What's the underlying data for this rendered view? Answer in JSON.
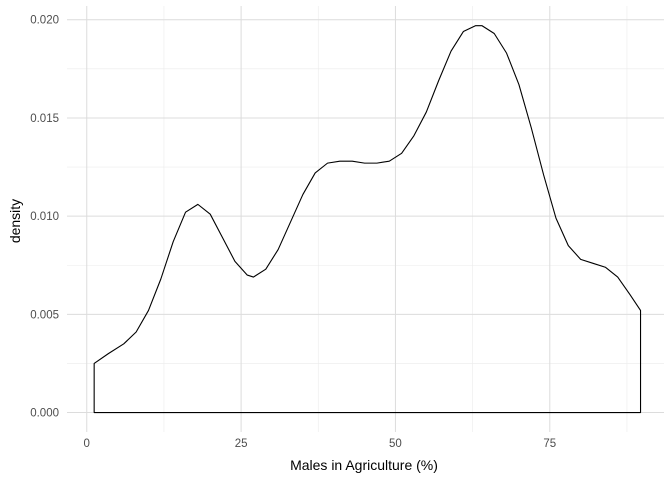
{
  "chart_data": {
    "type": "area",
    "title": "",
    "xlabel": "Males in Agriculture (%)",
    "ylabel": "density",
    "xlim": [
      -3.2,
      93.5
    ],
    "ylim": [
      -0.00099,
      0.0207
    ],
    "x_ticks": [
      0,
      25,
      50,
      75
    ],
    "x_tick_labels": [
      "0",
      "25",
      "50",
      "75"
    ],
    "y_ticks": [
      0.0,
      0.005,
      0.01,
      0.015,
      0.02
    ],
    "y_tick_labels": [
      "0.000",
      "0.005",
      "0.010",
      "0.015",
      "0.020"
    ],
    "grid": true,
    "legend": "none",
    "line_color": "#000000",
    "fill": "none",
    "series": [
      {
        "x": [
          1.2,
          3.5,
          6,
          8,
          10,
          12,
          14,
          16,
          18,
          20,
          22,
          24,
          26,
          27,
          29,
          31,
          33,
          35,
          37,
          39,
          41,
          43,
          45,
          47,
          49,
          51,
          53,
          55,
          57,
          59,
          61,
          63,
          64,
          66,
          68,
          70,
          72,
          74,
          76,
          78,
          80,
          82,
          84,
          86,
          88,
          89.7
        ],
        "y": [
          0.0025,
          0.003,
          0.0035,
          0.0041,
          0.0052,
          0.0068,
          0.0087,
          0.0102,
          0.0106,
          0.0101,
          0.0089,
          0.0077,
          0.007,
          0.0069,
          0.0073,
          0.0083,
          0.0097,
          0.0111,
          0.0122,
          0.0127,
          0.0128,
          0.0128,
          0.0127,
          0.0127,
          0.0128,
          0.0132,
          0.0141,
          0.0153,
          0.0169,
          0.0184,
          0.0194,
          0.0197,
          0.0197,
          0.0193,
          0.0183,
          0.0167,
          0.0145,
          0.0121,
          0.0099,
          0.0085,
          0.0078,
          0.0076,
          0.0074,
          0.0069,
          0.006,
          0.0052
        ]
      }
    ]
  }
}
